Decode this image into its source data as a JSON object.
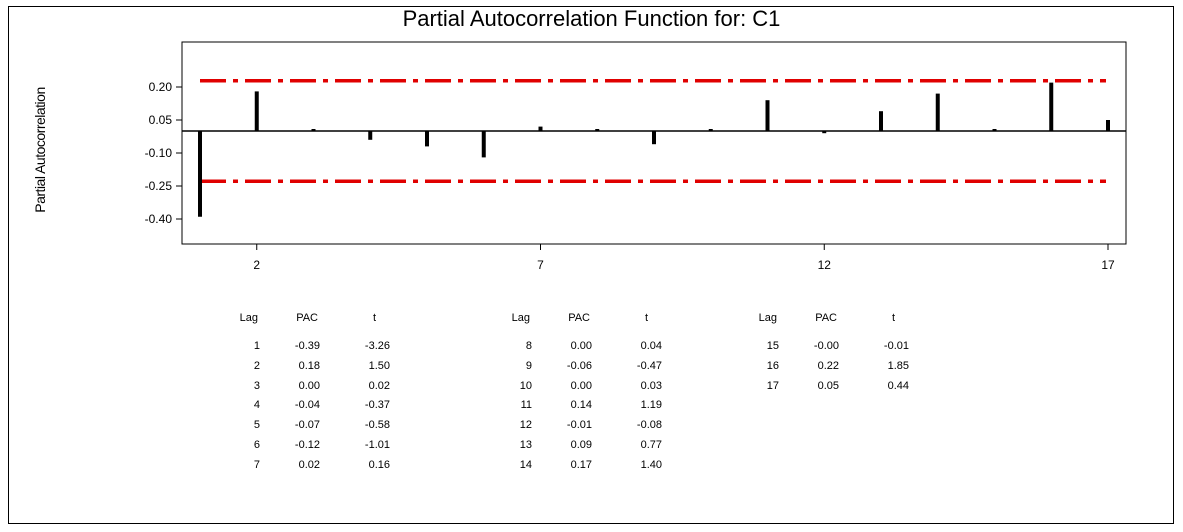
{
  "chart_data": {
    "type": "bar",
    "title": "Partial Autocorrelation Function for: C1",
    "ylabel": "Partial Autocorrelation",
    "xlabel": "",
    "x": [
      1,
      2,
      3,
      4,
      5,
      6,
      7,
      8,
      9,
      10,
      11,
      12,
      13,
      14,
      15,
      16,
      17
    ],
    "values": [
      -0.39,
      0.18,
      0.0,
      -0.04,
      -0.07,
      -0.12,
      0.02,
      0.0,
      -0.06,
      0.0,
      0.14,
      -0.01,
      0.09,
      0.17,
      -0.0,
      0.22,
      0.05
    ],
    "x_ticks": [
      2,
      7,
      12,
      17
    ],
    "y_ticks": [
      "0.20",
      "0.05",
      "-0.10",
      "-0.25",
      "-0.40"
    ],
    "y_tick_values": [
      0.2,
      0.05,
      -0.1,
      -0.25,
      -0.4
    ],
    "ylim": [
      -0.46,
      0.3
    ],
    "xlim": [
      0.5,
      17.5
    ],
    "significance_limits": [
      0.2285,
      -0.2285
    ],
    "limit_color": "#e00000",
    "bar_color": "#000000"
  },
  "table": {
    "headers": [
      "Lag",
      "PAC",
      "t"
    ],
    "columns": [
      [
        [
          "1",
          "-0.39",
          "-3.26"
        ],
        [
          "2",
          "0.18",
          "1.50"
        ],
        [
          "3",
          "0.00",
          "0.02"
        ],
        [
          "4",
          "-0.04",
          "-0.37"
        ],
        [
          "5",
          "-0.07",
          "-0.58"
        ],
        [
          "6",
          "-0.12",
          "-1.01"
        ],
        [
          "7",
          "0.02",
          "0.16"
        ]
      ],
      [
        [
          "8",
          "0.00",
          "0.04"
        ],
        [
          "9",
          "-0.06",
          "-0.47"
        ],
        [
          "10",
          "0.00",
          "0.03"
        ],
        [
          "11",
          "0.14",
          "1.19"
        ],
        [
          "12",
          "-0.01",
          "-0.08"
        ],
        [
          "13",
          "0.09",
          "0.77"
        ],
        [
          "14",
          "0.17",
          "1.40"
        ]
      ],
      [
        [
          "15",
          "-0.00",
          "-0.01"
        ],
        [
          "16",
          "0.22",
          "1.85"
        ],
        [
          "17",
          "0.05",
          "0.44"
        ]
      ]
    ]
  }
}
